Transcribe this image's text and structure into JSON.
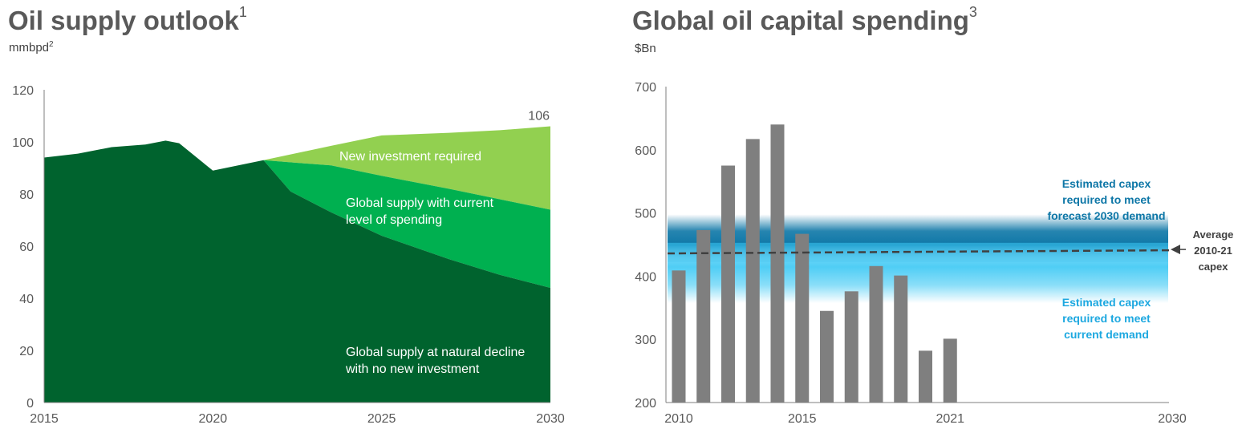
{
  "chart_data": [
    {
      "type": "area",
      "title": "Oil supply outlook",
      "title_footnote": "1",
      "unit": "mmbpd",
      "unit_footnote": "2",
      "xlim": [
        2015,
        2030
      ],
      "ylim": [
        0,
        120
      ],
      "x_ticks": [
        2015,
        2020,
        2025,
        2030
      ],
      "y_ticks": [
        0,
        20,
        40,
        60,
        80,
        100,
        120
      ],
      "end_label": "106",
      "series": [
        {
          "name": "Global supply at natural decline with no new investment",
          "label_lines": [
            "Global supply at natural decline",
            "with no new investment"
          ],
          "color": "#00632e",
          "points": [
            [
              2015,
              94
            ],
            [
              2016,
              95.5
            ],
            [
              2017,
              98
            ],
            [
              2018,
              99
            ],
            [
              2018.6,
              100.5
            ],
            [
              2019,
              99.5
            ],
            [
              2020,
              89
            ],
            [
              2021.5,
              93
            ],
            [
              2022.3,
              81
            ],
            [
              2023.5,
              73
            ],
            [
              2025,
              64
            ],
            [
              2027,
              55
            ],
            [
              2028.5,
              49
            ],
            [
              2030,
              44
            ]
          ]
        },
        {
          "name": "Global supply with current level of spending",
          "label_lines": [
            "Global supply with current",
            "level of spending"
          ],
          "color": "#00b050",
          "points": [
            [
              2021.5,
              93
            ],
            [
              2023.5,
              91
            ],
            [
              2025,
              87
            ],
            [
              2027,
              82
            ],
            [
              2028.5,
              78
            ],
            [
              2030,
              74
            ]
          ]
        },
        {
          "name": "New investment required",
          "label_lines": [
            "New investment required"
          ],
          "color": "#92d050",
          "points": [
            [
              2021.5,
              93
            ],
            [
              2023.5,
              98.5
            ],
            [
              2025,
              102.5
            ],
            [
              2027,
              103.5
            ],
            [
              2028.5,
              104.5
            ],
            [
              2030,
              106
            ]
          ]
        }
      ]
    },
    {
      "type": "bar",
      "title": "Global oil capital spending",
      "title_footnote": "3",
      "unit": "$Bn",
      "ylim": [
        200,
        700
      ],
      "y_ticks": [
        200,
        300,
        400,
        500,
        600,
        700
      ],
      "x_ticks": [
        "2010",
        "2015",
        "2021",
        "2030"
      ],
      "bar_color": "#7f7f7f",
      "categories": [
        "2010",
        "2011",
        "2012",
        "2013",
        "2014",
        "2015",
        "2016",
        "2017",
        "2018",
        "2019",
        "2020",
        "2021"
      ],
      "values": [
        409,
        473,
        575,
        617,
        640,
        467,
        345,
        376,
        416,
        401,
        282,
        301
      ],
      "bands": [
        {
          "name": "Estimated capex required to meet forecast 2030 demand",
          "label_lines": [
            "Estimated capex",
            "required to meet",
            "forecast 2030 demand"
          ],
          "color": "#0e77a7",
          "text_color": "#0e77a7",
          "range": [
            440,
            480
          ]
        },
        {
          "name": "Estimated capex required to meet current demand",
          "label_lines": [
            "Estimated capex",
            "required to meet",
            "current demand"
          ],
          "color": "#3cc8f4",
          "text_color": "#1da8e0",
          "range": [
            375,
            435
          ]
        }
      ],
      "average_line": {
        "label_lines": [
          "Average",
          "2010-21",
          "capex"
        ],
        "start": 436,
        "end": 441
      }
    }
  ]
}
